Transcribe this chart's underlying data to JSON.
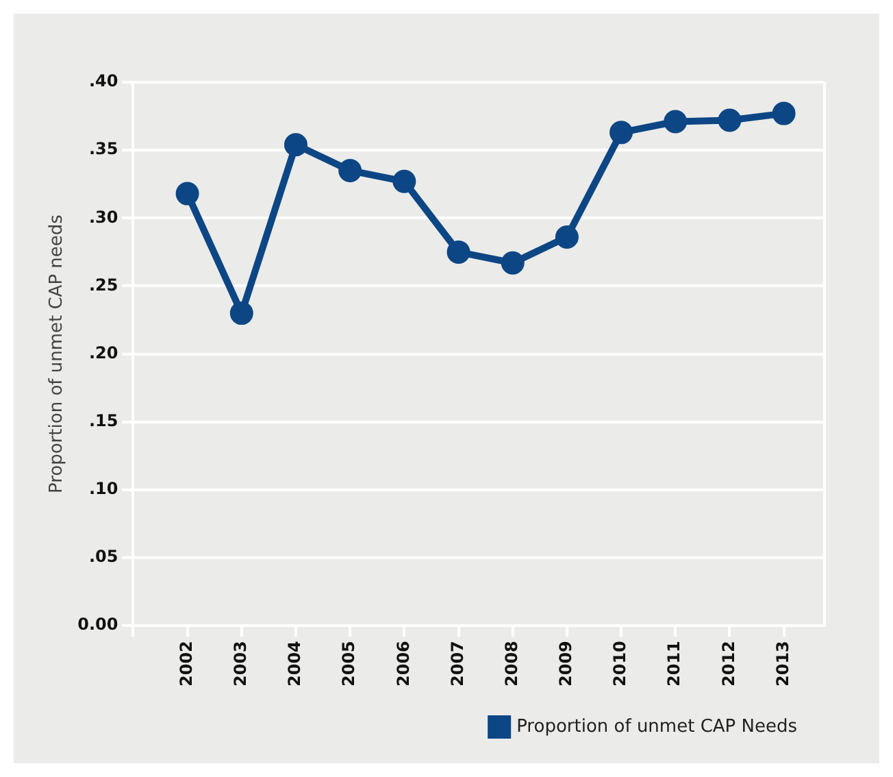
{
  "chart_data": {
    "type": "line",
    "ylabel": "Proportion of unmet CAP needs",
    "x": [
      2002,
      2003,
      2004,
      2005,
      2006,
      2007,
      2008,
      2009,
      2010,
      2011,
      2012,
      2013
    ],
    "xlim": [
      2001,
      2013.75
    ],
    "xticks": [
      {
        "value": 2001,
        "label": null
      },
      2002,
      2003,
      2004,
      2005,
      2006,
      2007,
      2008,
      2009,
      2010,
      2011,
      2012,
      2013
    ],
    "ylim": [
      0,
      0.4
    ],
    "yticks": [
      {
        "value": 0,
        "label": "0.00"
      },
      {
        "value": 0.05,
        "label": ".05"
      },
      {
        "value": 0.1,
        "label": ".10"
      },
      {
        "value": 0.15,
        "label": ".15"
      },
      {
        "value": 0.2,
        "label": ".20"
      },
      {
        "value": 0.25,
        "label": ".25"
      },
      {
        "value": 0.3,
        "label": ".30"
      },
      {
        "value": 0.35,
        "label": ".35"
      },
      {
        "value": 0.4,
        "label": ".40"
      }
    ],
    "series": [
      {
        "name": "Proportion of unmet CAP Needs",
        "color": "#0d4684",
        "values": [
          0.318,
          0.23,
          0.354,
          0.335,
          0.327,
          0.275,
          0.267,
          0.286,
          0.363,
          0.371,
          0.372,
          0.377
        ]
      }
    ],
    "grid": "y",
    "legend": "bottom right",
    "marker": "circle",
    "line_style": "solid"
  }
}
